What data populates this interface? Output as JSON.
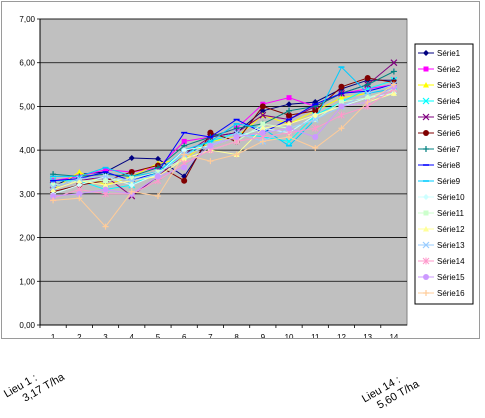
{
  "chart_data": {
    "type": "line",
    "title": "",
    "xlabel": "",
    "ylabel": "",
    "ylim": [
      0,
      7
    ],
    "yticks": [
      "0,00",
      "1,00",
      "2,00",
      "3,00",
      "4,00",
      "5,00",
      "6,00",
      "7,00"
    ],
    "categories": [
      "1",
      "2",
      "3",
      "4",
      "5",
      "6",
      "7",
      "8",
      "9",
      "10",
      "11",
      "12",
      "13",
      "14"
    ],
    "legend_position": "right",
    "plot_background": "#c0c0c0",
    "series": [
      {
        "name": "Série1",
        "color": "#000080",
        "values": [
          3.17,
          3.45,
          3.5,
          3.82,
          3.8,
          3.4,
          4.3,
          4.4,
          4.9,
          5.05,
          5.1,
          5.4,
          5.6,
          5.6
        ]
      },
      {
        "name": "Série2",
        "color": "#ff00ff",
        "values": [
          3.3,
          3.4,
          3.55,
          3.5,
          3.6,
          4.2,
          4.3,
          4.5,
          5.05,
          5.2,
          5.0,
          5.3,
          5.4,
          5.5
        ]
      },
      {
        "name": "Série3",
        "color": "#ffff00",
        "values": [
          3.1,
          3.5,
          3.2,
          3.4,
          3.7,
          3.8,
          4.2,
          4.3,
          4.8,
          4.6,
          4.9,
          5.2,
          5.3,
          5.5
        ]
      },
      {
        "name": "Série4",
        "color": "#00ffff",
        "values": [
          3.3,
          3.3,
          3.1,
          3.2,
          3.5,
          3.9,
          4.2,
          4.4,
          4.3,
          4.2,
          4.8,
          5.1,
          5.4,
          5.6
        ]
      },
      {
        "name": "Série5",
        "color": "#800080",
        "values": [
          3.2,
          3.3,
          3.4,
          2.95,
          3.4,
          3.9,
          4.3,
          4.4,
          4.8,
          4.7,
          5.0,
          5.3,
          5.5,
          6.0
        ]
      },
      {
        "name": "Série6",
        "color": "#800000",
        "values": [
          3.05,
          3.2,
          3.3,
          3.5,
          3.65,
          3.3,
          4.4,
          4.2,
          5.0,
          4.8,
          4.9,
          5.45,
          5.65,
          5.55
        ]
      },
      {
        "name": "Série7",
        "color": "#008080",
        "values": [
          3.45,
          3.4,
          3.45,
          3.4,
          3.6,
          4.1,
          4.3,
          4.5,
          4.6,
          4.9,
          5.0,
          5.3,
          5.5,
          5.8
        ]
      },
      {
        "name": "Série8",
        "color": "#0000ff",
        "values": [
          3.3,
          3.35,
          3.5,
          3.3,
          3.5,
          4.4,
          4.3,
          4.7,
          4.4,
          4.7,
          5.05,
          5.3,
          5.35,
          5.5
        ]
      },
      {
        "name": "Série9",
        "color": "#00ccff",
        "values": [
          3.4,
          3.4,
          3.6,
          3.4,
          3.5,
          4.0,
          4.2,
          4.6,
          4.5,
          4.1,
          4.7,
          5.9,
          5.3,
          5.4
        ]
      },
      {
        "name": "Série10",
        "color": "#ccffff",
        "values": [
          3.0,
          3.2,
          3.4,
          3.2,
          3.45,
          4.0,
          4.1,
          4.3,
          4.5,
          4.4,
          4.8,
          5.0,
          5.2,
          5.3
        ]
      },
      {
        "name": "Série11",
        "color": "#ccffcc",
        "values": [
          3.2,
          3.3,
          3.3,
          3.35,
          3.5,
          3.8,
          4.0,
          4.2,
          4.6,
          4.5,
          4.7,
          5.1,
          5.2,
          5.4
        ]
      },
      {
        "name": "Série12",
        "color": "#ffff99",
        "values": [
          3.1,
          3.3,
          3.2,
          3.3,
          3.4,
          3.8,
          4.0,
          3.9,
          4.5,
          4.6,
          4.8,
          5.0,
          5.1,
          5.3
        ]
      },
      {
        "name": "Série13",
        "color": "#99ccff",
        "values": [
          3.15,
          3.35,
          3.4,
          3.3,
          3.45,
          3.9,
          4.1,
          4.4,
          4.2,
          4.5,
          4.7,
          5.0,
          5.3,
          5.5
        ]
      },
      {
        "name": "Série14",
        "color": "#ff99cc",
        "values": [
          2.9,
          3.1,
          3.0,
          3.0,
          3.3,
          3.7,
          4.0,
          4.2,
          4.3,
          4.4,
          4.5,
          4.8,
          5.0,
          5.4
        ]
      },
      {
        "name": "Série15",
        "color": "#cc99ff",
        "values": [
          2.95,
          3.0,
          3.1,
          3.0,
          3.4,
          3.6,
          4.1,
          4.3,
          4.4,
          4.5,
          4.3,
          5.0,
          5.1,
          5.45
        ]
      },
      {
        "name": "Série16",
        "color": "#ffcc99",
        "values": [
          2.85,
          2.9,
          2.25,
          3.05,
          2.95,
          3.9,
          3.75,
          3.9,
          4.2,
          4.3,
          4.05,
          4.5,
          5.1,
          5.5
        ]
      }
    ]
  },
  "annotations": {
    "left": {
      "line1": "Lieu 1 :",
      "line2": "3,17 T/ha"
    },
    "right": {
      "line1": "Lieu 14 :",
      "line2": "5,60 T/ha"
    }
  }
}
